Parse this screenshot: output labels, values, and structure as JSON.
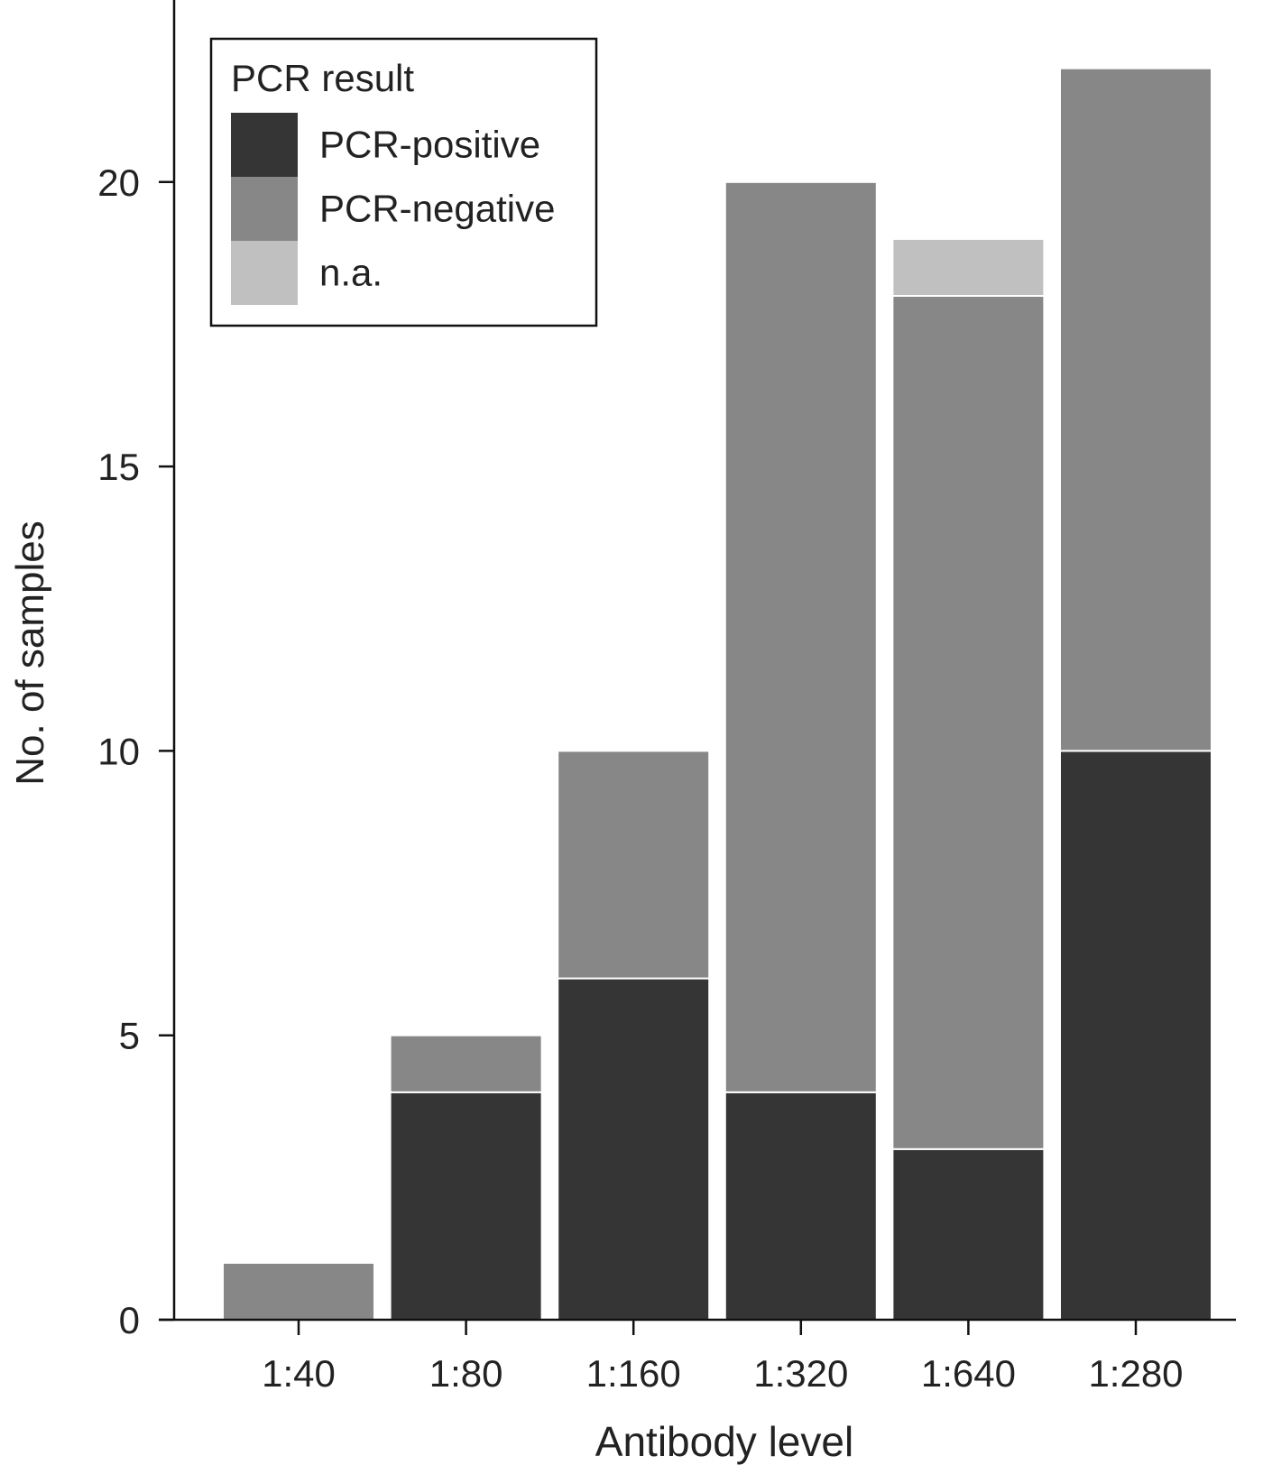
{
  "chart_data": {
    "type": "bar",
    "stacked": true,
    "categories": [
      "1:40",
      "1:80",
      "1:160",
      "1:320",
      "1:640",
      "1:280"
    ],
    "series": [
      {
        "name": "PCR-positive",
        "values": [
          0,
          4,
          6,
          4,
          3,
          10
        ],
        "color": "#353535"
      },
      {
        "name": "PCR-negative",
        "values": [
          1,
          1,
          4,
          16,
          15,
          12
        ],
        "color": "#878787"
      },
      {
        "name": "n.a.",
        "values": [
          0,
          0,
          0,
          0,
          1,
          0
        ],
        "color": "#c0c0c0"
      }
    ],
    "xlabel": "Antibody level",
    "ylabel": "No. of samples",
    "ylim": [
      0,
      23.2
    ],
    "yticks": [
      0,
      5,
      10,
      15,
      20
    ],
    "legend": {
      "title": "PCR result",
      "position": "top-left"
    },
    "grid": false
  }
}
